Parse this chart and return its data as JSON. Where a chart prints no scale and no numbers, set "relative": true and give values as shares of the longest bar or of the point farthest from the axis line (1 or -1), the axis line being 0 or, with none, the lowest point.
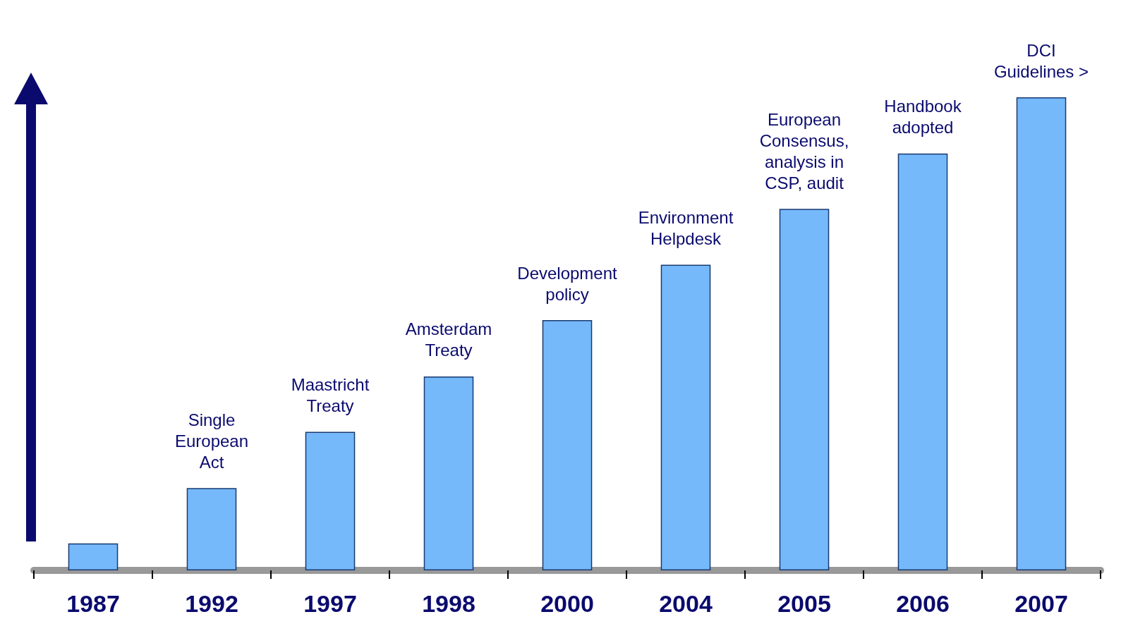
{
  "chart_data": {
    "type": "bar",
    "relative": true,
    "categories": [
      "1987",
      "1992",
      "1997",
      "1998",
      "2000",
      "2004",
      "2005",
      "2006",
      "2007"
    ],
    "values": [
      0.057,
      0.174,
      0.293,
      0.41,
      0.529,
      0.646,
      0.764,
      0.881,
      1
    ],
    "color": "#75b9fb",
    "annotations": [
      {
        "text": "Single\nEuropean\nAct",
        "x": "1992",
        "y": 0.174
      },
      {
        "text": "Maastricht\nTreaty",
        "x": "1997",
        "y": 0.293
      },
      {
        "text": "Amsterdam\nTreaty",
        "x": "1998",
        "y": 0.41
      },
      {
        "text": "Development\npolicy",
        "x": "2000",
        "y": 0.529
      },
      {
        "text": "Environment\nHelpdesk",
        "x": "2004",
        "y": 0.646
      },
      {
        "text": "European\nConsensus,\nanalysis in\nCSP, audit",
        "x": "2005",
        "y": 0.764
      },
      {
        "text": "Handbook\nadopted",
        "x": "2006",
        "y": 0.881
      },
      {
        "text": "DCI\nGuidelines >",
        "x": "2007",
        "y": 1
      }
    ],
    "grid": false
  }
}
